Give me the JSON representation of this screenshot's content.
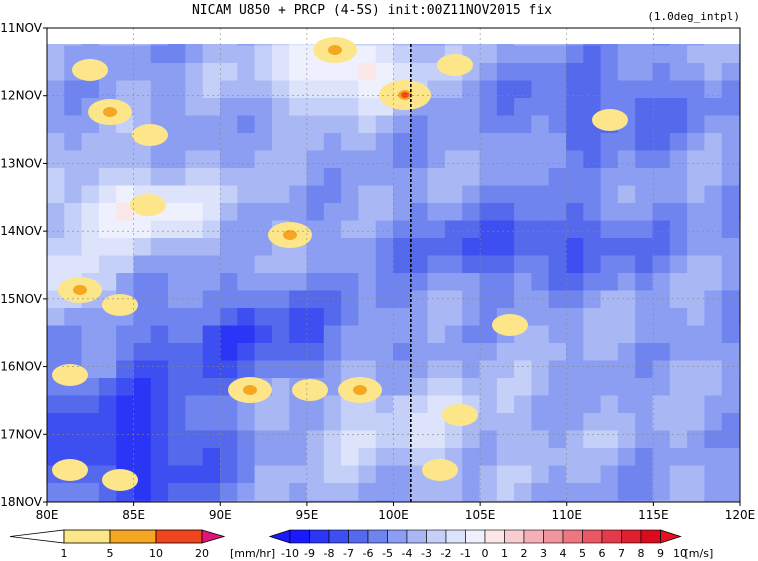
{
  "chart_data": {
    "type": "heatmap",
    "title": "NICAM   U850 + PRCP (4-5S) init:00Z11NOV2015 fix",
    "subtitle": "(1.0deg_intpl)",
    "x_ticks": [
      "80E",
      "85E",
      "90E",
      "95E",
      "100E",
      "105E",
      "110E",
      "115E",
      "120E"
    ],
    "x_range": [
      80,
      120
    ],
    "y_ticks": [
      "11NOV",
      "12NOV",
      "13NOV",
      "14NOV",
      "15NOV",
      "16NOV",
      "17NOV",
      "18NOV"
    ],
    "grid": true,
    "reference_line_x": 101,
    "colors": {
      "prcp": [
        "#ffffff",
        "#fde68a",
        "#f5a623",
        "#f0451d",
        "#e0157a"
      ],
      "u_neg": [
        "#1a1aff",
        "#2a35f5",
        "#3d4ff0",
        "#5569ec",
        "#6f84ef",
        "#8c9ef2",
        "#a9b8f5",
        "#c5d0f8",
        "#dde3fb",
        "#eef1fd"
      ],
      "u_pos": [
        "#fbe6e8",
        "#f8cdd2",
        "#f4b0b7",
        "#f1949c",
        "#ed7680",
        "#e95865",
        "#e43b4a",
        "#df2030",
        "#d80c1c"
      ]
    },
    "prcp_legend": {
      "labels": [
        "1",
        "5",
        "10",
        "20"
      ],
      "unit": "[mm/hr]"
    },
    "u_legend": {
      "labels": [
        "-10",
        "-9",
        "-8",
        "-7",
        "-6",
        "-5",
        "-4",
        "-3",
        "-2",
        "-1",
        "0",
        "1",
        "2",
        "3",
        "4",
        "5",
        "6",
        "7",
        "8",
        "9",
        "10"
      ],
      "unit": "[m/s]"
    }
  }
}
